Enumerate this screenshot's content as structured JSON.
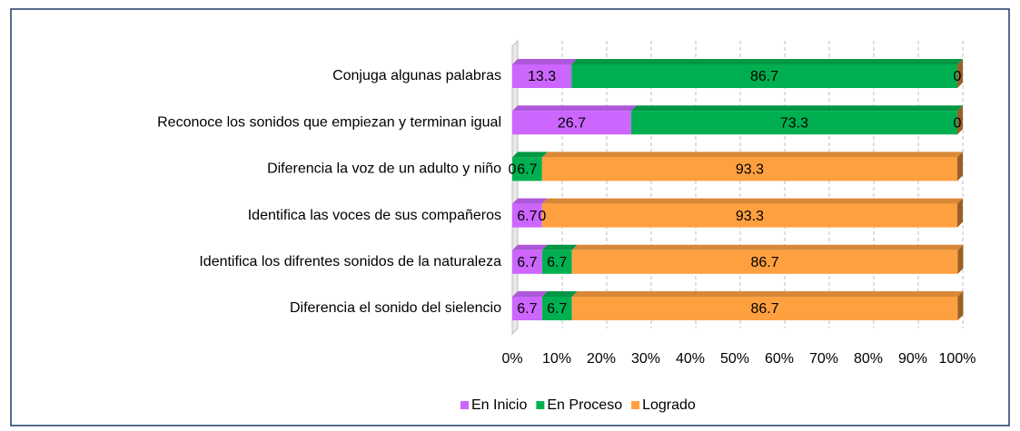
{
  "chart_data": {
    "type": "stacked_bar_horizontal",
    "categories": [
      "Conjuga algunas palabras",
      "Reconoce los sonidos que empiezan y terminan igual",
      "Diferencia la voz de un adulto y niño",
      "Identifica las voces de sus compañeros",
      "Identifica los difrentes sonidos de la naturaleza",
      "Diferencia el sonido del sielencio"
    ],
    "series": [
      {
        "name": "En Inicio",
        "color": "#cc66ff",
        "values": [
          13.3,
          26.7,
          0,
          6.7,
          6.7,
          6.7
        ]
      },
      {
        "name": "En Proceso",
        "color": "#00b050",
        "values": [
          86.7,
          73.3,
          6.7,
          0,
          6.7,
          6.7
        ]
      },
      {
        "name": "Logrado",
        "color": "#ffa040",
        "values": [
          0,
          0,
          93.3,
          93.3,
          86.7,
          86.7
        ]
      }
    ],
    "xlim": [
      0,
      100
    ],
    "xticks": [
      {
        "value": 0,
        "label": "0%"
      },
      {
        "value": 10,
        "label": "10%"
      },
      {
        "value": 20,
        "label": "20%"
      },
      {
        "value": 30,
        "label": "30%"
      },
      {
        "value": 40,
        "label": "40%"
      },
      {
        "value": 50,
        "label": "50%"
      },
      {
        "value": 60,
        "label": "60%"
      },
      {
        "value": 70,
        "label": "70%"
      },
      {
        "value": 80,
        "label": "80%"
      },
      {
        "value": 90,
        "label": "90%"
      },
      {
        "value": 100,
        "label": "100%"
      }
    ],
    "grid": true,
    "legend": "bottom"
  }
}
